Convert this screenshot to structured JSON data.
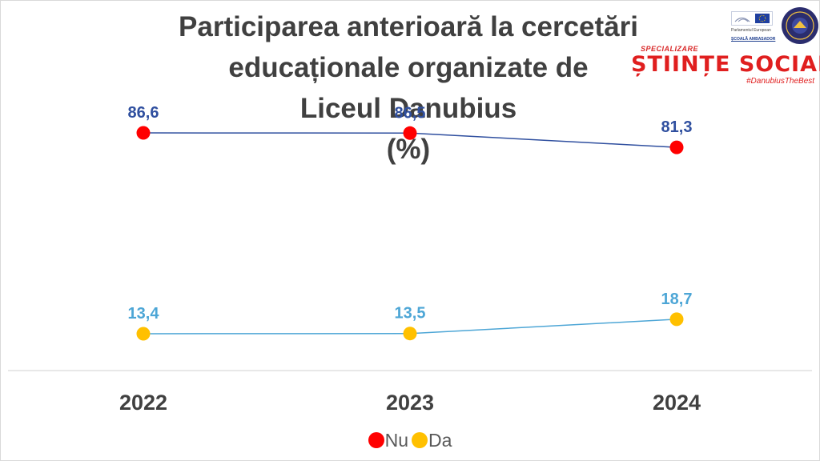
{
  "chart_data": {
    "type": "line",
    "title_lines": [
      "Participarea anterioară la cercetări",
      "educaționale organizate de",
      "Liceul Danubius",
      "(%)"
    ],
    "categories": [
      "2022",
      "2023",
      "2024"
    ],
    "series": [
      {
        "name": "Nu",
        "values": [
          86.6,
          86.5,
          81.3
        ],
        "labels": [
          "86,6",
          "86,5",
          "81,3"
        ],
        "line_color": "#2f4f9f",
        "marker_color": "#ff0000",
        "label_color": "#2f4f9f"
      },
      {
        "name": "Da",
        "values": [
          13.4,
          13.5,
          18.7
        ],
        "labels": [
          "13,4",
          "13,5",
          "18,7"
        ],
        "line_color": "#4da6d6",
        "marker_color": "#ffc000",
        "label_color": "#4da6d6"
      }
    ],
    "ylim": [
      0,
      100
    ],
    "grid": false,
    "legend_position": "bottom",
    "xlabel": "",
    "ylabel": ""
  },
  "branding": {
    "ep_name": "Parlamentul European",
    "ep_program": "ȘCOALĂ AMBASADOR",
    "seal_text": "LICEUL DANUBIUS CĂLĂRAȘI",
    "spec_label": "SPECIALIZARE",
    "spec_name": "ȘTIINȚE SOCIALE",
    "hashtag": "#DanubiusTheBest"
  },
  "colors": {
    "title": "#404040",
    "tick_label": "#404040",
    "axis": "#d9d9d9"
  }
}
